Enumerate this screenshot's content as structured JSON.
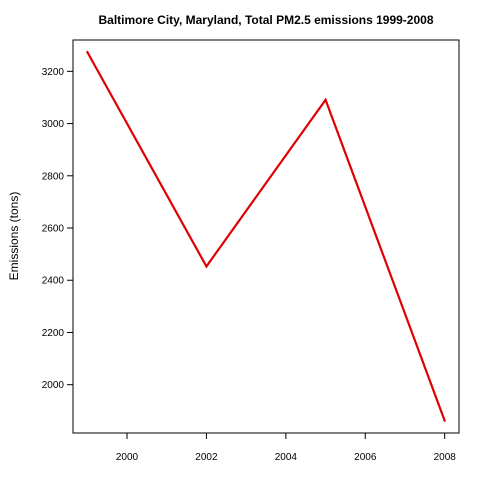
{
  "chart_data": {
    "type": "line",
    "title": "Baltimore City, Maryland, Total PM2.5 emissions 1999-2008",
    "xlabel": "",
    "ylabel": "Emissions (tons)",
    "x": [
      1999,
      2002,
      2005,
      2008
    ],
    "series": [
      {
        "values": [
          3274,
          2453,
          3091,
          1862
        ],
        "color": "#e00000"
      }
    ],
    "xlim": [
      1998.64,
      2008.36
    ],
    "ylim": [
      1815,
      3320
    ],
    "xticks": [
      2000,
      2002,
      2004,
      2006,
      2008
    ],
    "yticks": [
      2000,
      2200,
      2400,
      2600,
      2800,
      3000,
      3200
    ],
    "grid": false,
    "legend": "none"
  }
}
